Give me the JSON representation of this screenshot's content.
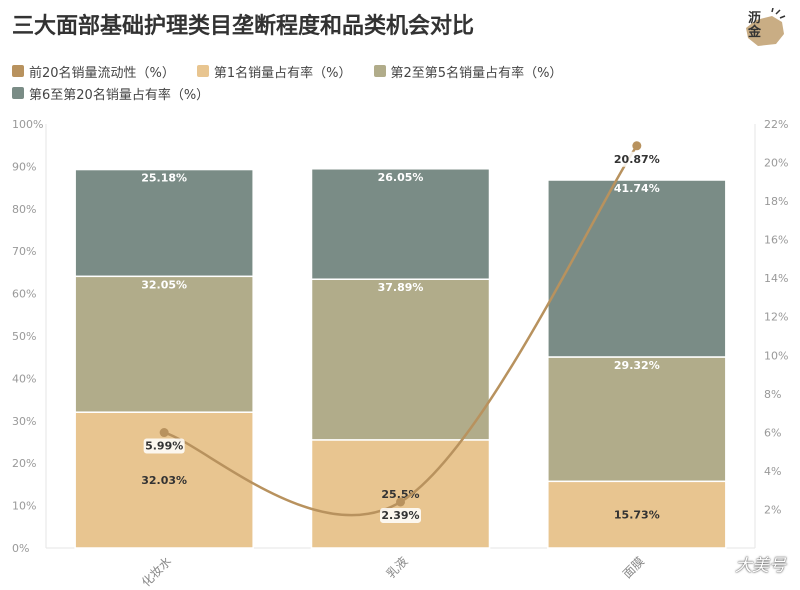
{
  "title": "三大面部基础护理类目垄断程度和品类机会对比",
  "legend": [
    {
      "label": "前20名销量流动性（%）",
      "color": "#b8925e"
    },
    {
      "label": "第1名销量占有率（%）",
      "color": "#e8c590"
    },
    {
      "label": "第2至第5名销量占有率（%）",
      "color": "#b1ac8a"
    },
    {
      "label": "第6至第20名销量占有率（%）",
      "color": "#7a8c86"
    }
  ],
  "logo_text": "沥金",
  "watermark": "大美号",
  "chart_data": {
    "type": "bar",
    "stacked": true,
    "categories": [
      "化妆水",
      "乳液",
      "面膜"
    ],
    "series": [
      {
        "name": "第1名销量占有率（%）",
        "values": [
          32.03,
          25.5,
          15.73
        ],
        "labels": [
          "32.03%",
          "25.5%",
          "15.73%"
        ],
        "color": "#e8c590"
      },
      {
        "name": "第2至第5名销量占有率（%）",
        "values": [
          32.05,
          37.89,
          29.32
        ],
        "labels": [
          "32.05%",
          "37.89%",
          "29.32%"
        ],
        "color": "#b1ac8a"
      },
      {
        "name": "第6至第20名销量占有率（%）",
        "values": [
          25.18,
          26.05,
          41.74
        ],
        "labels": [
          "25.18%",
          "26.05%",
          "41.74%"
        ],
        "color": "#7a8c86"
      }
    ],
    "line_series": {
      "name": "前20名销量流动性（%）",
      "values": [
        5.99,
        2.39,
        20.87
      ],
      "labels": [
        "5.99%",
        "2.39%",
        "20.87%"
      ],
      "color": "#b8925e",
      "axis": "right"
    },
    "y_left": {
      "min": 0,
      "max": 100,
      "ticks": [
        0,
        10,
        20,
        30,
        40,
        50,
        60,
        70,
        80,
        90,
        100
      ],
      "tick_labels": [
        "0%",
        "10%",
        "20%",
        "30%",
        "40%",
        "50%",
        "60%",
        "70%",
        "80%",
        "90%",
        "100%"
      ]
    },
    "y_right": {
      "min": 0,
      "max": 22,
      "ticks": [
        2,
        4,
        6,
        8,
        10,
        12,
        14,
        16,
        18,
        20,
        22
      ],
      "tick_labels": [
        "2%",
        "4%",
        "6%",
        "8%",
        "10%",
        "12%",
        "14%",
        "16%",
        "18%",
        "20%",
        "22%"
      ]
    },
    "xlabel": "",
    "ylabel": "",
    "legend_position": "top-left",
    "grid": false
  }
}
